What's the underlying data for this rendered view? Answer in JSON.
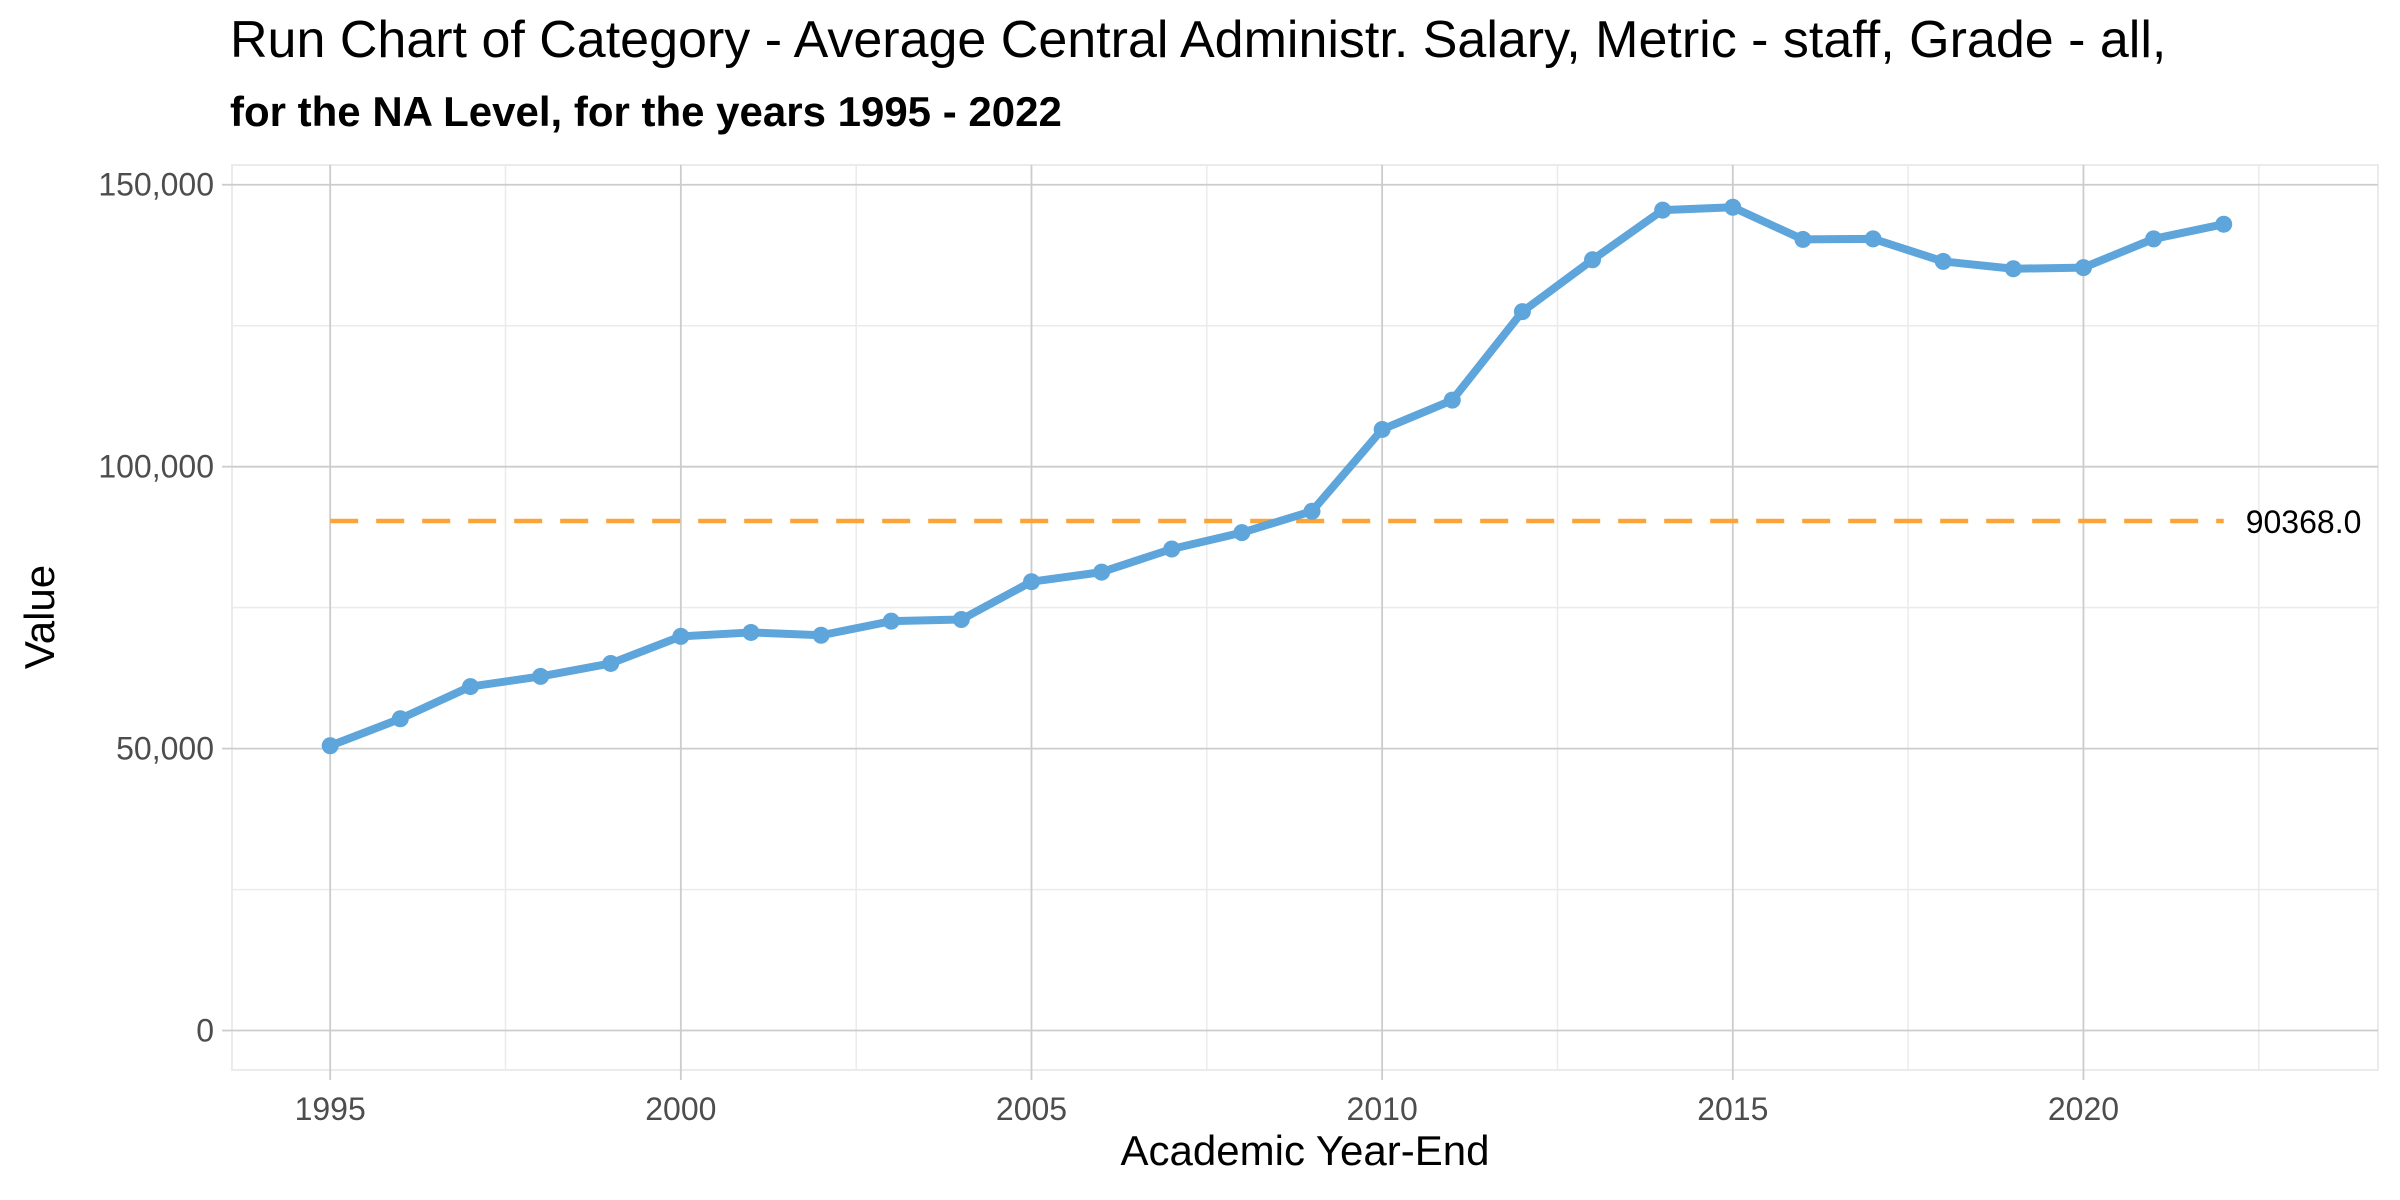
{
  "chart_data": {
    "type": "line",
    "title": "Run Chart of Category - Average Central Administr. Salary, Metric - staff, Grade - all,",
    "subtitle": "for the NA Level, for the years 1995 - 2022",
    "xlabel": "Academic Year-End",
    "ylabel": "Value",
    "xlim": [
      1993.6,
      2024.2
    ],
    "ylim": [
      -7000,
      153500
    ],
    "x_ticks": [
      1995,
      2000,
      2005,
      2010,
      2015,
      2020
    ],
    "x_tick_labels": [
      "1995",
      "2000",
      "2005",
      "2010",
      "2015",
      "2020"
    ],
    "x_minor_ticks": [
      1997.5,
      2002.5,
      2007.5,
      2012.5,
      2017.5,
      2022.5
    ],
    "y_ticks": [
      0,
      50000,
      100000,
      150000
    ],
    "y_tick_labels": [
      "0",
      "50,000",
      "100,000",
      "150,000"
    ],
    "y_minor_ticks": [
      25000,
      75000,
      125000
    ],
    "grid": true,
    "series": [
      {
        "color": "#5DA5DA",
        "x": [
          1995,
          1996,
          1997,
          1998,
          1999,
          2000,
          2001,
          2002,
          2003,
          2004,
          2005,
          2006,
          2007,
          2008,
          2009,
          2010,
          2011,
          2012,
          2013,
          2014,
          2015,
          2016,
          2017,
          2018,
          2019,
          2020,
          2021,
          2022
        ],
        "y": [
          50500,
          55300,
          61000,
          62800,
          65100,
          69900,
          70600,
          70100,
          72600,
          72900,
          79600,
          81300,
          85400,
          88300,
          92100,
          106600,
          111800,
          127500,
          136700,
          145500,
          146000,
          140300,
          140400,
          136400,
          135100,
          135300,
          140400,
          143000
        ]
      }
    ],
    "reference_line": {
      "value": 90368.0,
      "label": "90368.0",
      "x_start": 1995,
      "x_end": 2022,
      "color": "#FAA43A",
      "style": "dashed"
    }
  }
}
